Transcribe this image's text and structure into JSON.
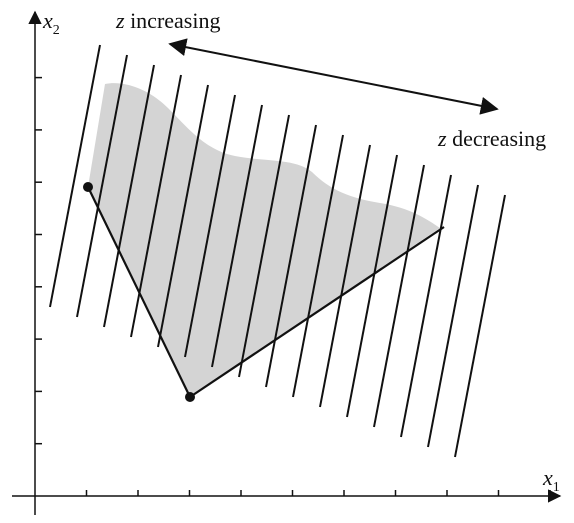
{
  "axes": {
    "x_label_var": "x",
    "x_label_sub": "1",
    "y_label_var": "x",
    "y_label_sub": "2",
    "x_ticks": 10,
    "y_ticks": 8
  },
  "annotations": {
    "increasing_var": "z",
    "increasing_text": " increasing",
    "decreasing_var": "z",
    "decreasing_text": " decreasing"
  },
  "colors": {
    "region_fill": "#d4d4d4",
    "line": "#111111"
  },
  "contour_line_count": 16
}
